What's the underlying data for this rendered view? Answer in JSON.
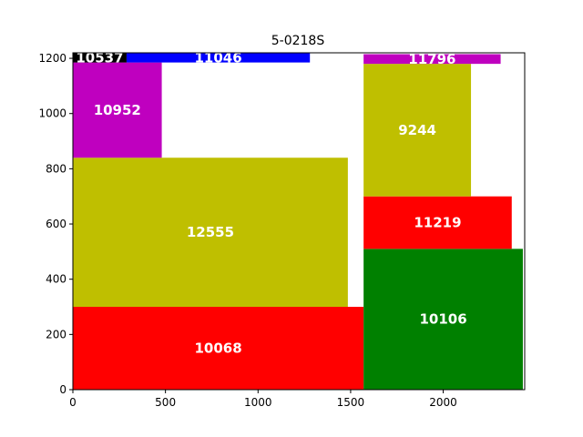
{
  "chart_data": {
    "type": "rectangle-packing",
    "title": "5-0218S",
    "xlim": [
      0,
      2440
    ],
    "ylim": [
      0,
      1220
    ],
    "xticks": [
      0,
      500,
      1000,
      1500,
      2000
    ],
    "yticks": [
      0,
      200,
      400,
      600,
      800,
      1000,
      1200
    ],
    "grid": false,
    "colors": {
      "red": "#ff0000",
      "olive": "#bfbf00",
      "magenta": "#bf00bf",
      "blue": "#0000ff",
      "black": "#000000",
      "green": "#008000"
    },
    "rects": [
      {
        "label": "10068",
        "x0": 0,
        "x1": 1570,
        "y0": 0,
        "y1": 300,
        "color": "#ff0000"
      },
      {
        "label": "12555",
        "x0": 0,
        "x1": 1485,
        "y0": 300,
        "y1": 840,
        "color": "#bfbf00"
      },
      {
        "label": "10952",
        "x0": 0,
        "x1": 480,
        "y0": 840,
        "y1": 1185,
        "color": "#bf00bf"
      },
      {
        "label": "10537",
        "x0": 0,
        "x1": 290,
        "y0": 1185,
        "y1": 1220,
        "color": "#000000"
      },
      {
        "label": "11046",
        "x0": 290,
        "x1": 1280,
        "y0": 1185,
        "y1": 1220,
        "color": "#0000ff"
      },
      {
        "label": "10106",
        "x0": 1570,
        "x1": 2430,
        "y0": 0,
        "y1": 510,
        "color": "#008000"
      },
      {
        "label": "11219",
        "x0": 1570,
        "x1": 2370,
        "y0": 510,
        "y1": 700,
        "color": "#ff0000"
      },
      {
        "label": "9244",
        "x0": 1570,
        "x1": 2150,
        "y0": 700,
        "y1": 1180,
        "color": "#bfbf00"
      },
      {
        "label": "11796",
        "x0": 1570,
        "x1": 2310,
        "y0": 1180,
        "y1": 1215,
        "color": "#bf00bf"
      }
    ]
  }
}
